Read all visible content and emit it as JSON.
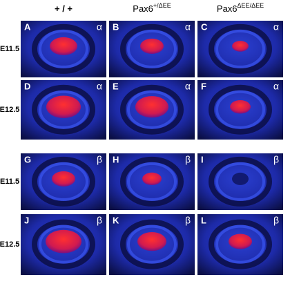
{
  "columns": [
    {
      "label": "+ / +"
    },
    {
      "label": "Pax6",
      "sup": "+/ΔEE"
    },
    {
      "label": "Pax6",
      "sup": "ΔEE/ΔEE"
    }
  ],
  "rows": [
    "E11.5",
    "E12.5",
    "E11.5",
    "E12.5"
  ],
  "panels": [
    {
      "letter": "A",
      "marker": "α"
    },
    {
      "letter": "B",
      "marker": "α"
    },
    {
      "letter": "C",
      "marker": "α"
    },
    {
      "letter": "D",
      "marker": "α"
    },
    {
      "letter": "E",
      "marker": "α"
    },
    {
      "letter": "F",
      "marker": "α"
    },
    {
      "letter": "G",
      "marker": "β"
    },
    {
      "letter": "H",
      "marker": "β"
    },
    {
      "letter": "I",
      "marker": "β"
    },
    {
      "letter": "J",
      "marker": "β"
    },
    {
      "letter": "K",
      "marker": "β"
    },
    {
      "letter": "L",
      "marker": "β"
    }
  ]
}
